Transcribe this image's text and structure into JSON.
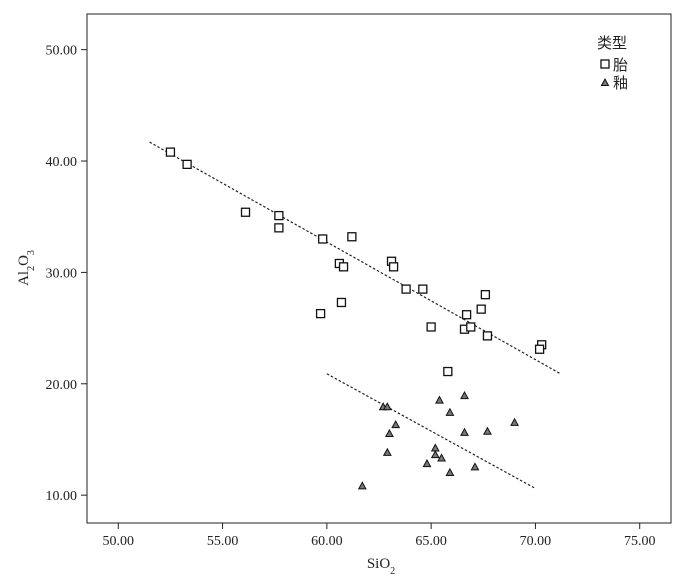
{
  "chart_data": {
    "type": "scatter",
    "title": "",
    "xlabel": "SiO2",
    "ylabel": "Al2O3",
    "xlabel_parts": {
      "base": "SiO",
      "sub": "2"
    },
    "ylabel_parts": {
      "a": "Al",
      "sub1": "2",
      "b": "O",
      "sub2": "3"
    },
    "xlim": [
      48.5,
      76.5
    ],
    "ylim": [
      7.5,
      53.2
    ],
    "xticks": [
      50,
      55,
      60,
      65,
      70,
      75
    ],
    "yticks": [
      10,
      20,
      30,
      40,
      50
    ],
    "xtick_labels": [
      "50.00",
      "55.00",
      "60.00",
      "65.00",
      "70.00",
      "75.00"
    ],
    "ytick_labels": [
      "10.00",
      "20.00",
      "30.00",
      "40.00",
      "50.00"
    ],
    "grid": false,
    "legend": {
      "title": "类型",
      "placement": "top-right"
    },
    "series": [
      {
        "name": "胎",
        "marker": "square",
        "points": [
          [
            52.5,
            40.8
          ],
          [
            53.3,
            39.7
          ],
          [
            56.1,
            35.4
          ],
          [
            57.7,
            35.1
          ],
          [
            57.7,
            34.0
          ],
          [
            59.8,
            33.0
          ],
          [
            61.2,
            33.2
          ],
          [
            60.6,
            30.8
          ],
          [
            60.8,
            30.5
          ],
          [
            63.1,
            31.0
          ],
          [
            63.2,
            30.5
          ],
          [
            63.8,
            28.5
          ],
          [
            64.6,
            28.5
          ],
          [
            60.7,
            27.3
          ],
          [
            59.7,
            26.3
          ],
          [
            65.0,
            25.1
          ],
          [
            66.7,
            26.2
          ],
          [
            66.6,
            24.9
          ],
          [
            66.9,
            25.1
          ],
          [
            67.4,
            26.7
          ],
          [
            67.6,
            28.0
          ],
          [
            67.7,
            24.3
          ],
          [
            70.3,
            23.5
          ],
          [
            70.2,
            23.1
          ],
          [
            65.8,
            21.1
          ]
        ]
      },
      {
        "name": "釉",
        "marker": "triangle",
        "points": [
          [
            62.7,
            17.9
          ],
          [
            62.9,
            17.9
          ],
          [
            63.0,
            15.5
          ],
          [
            63.3,
            16.3
          ],
          [
            62.9,
            13.8
          ],
          [
            64.8,
            12.8
          ],
          [
            65.2,
            14.2
          ],
          [
            65.2,
            13.6
          ],
          [
            65.5,
            13.3
          ],
          [
            65.4,
            18.5
          ],
          [
            65.9,
            17.4
          ],
          [
            65.9,
            12.0
          ],
          [
            66.6,
            18.9
          ],
          [
            66.6,
            15.6
          ],
          [
            67.1,
            12.5
          ],
          [
            67.7,
            15.7
          ],
          [
            69.0,
            16.5
          ],
          [
            61.7,
            10.8
          ]
        ]
      }
    ],
    "trend_lines": [
      {
        "from": [
          51.5,
          41.7
        ],
        "to": [
          71.2,
          20.9
        ]
      },
      {
        "from": [
          60.0,
          20.9
        ],
        "to": [
          70.0,
          10.6
        ]
      }
    ]
  }
}
